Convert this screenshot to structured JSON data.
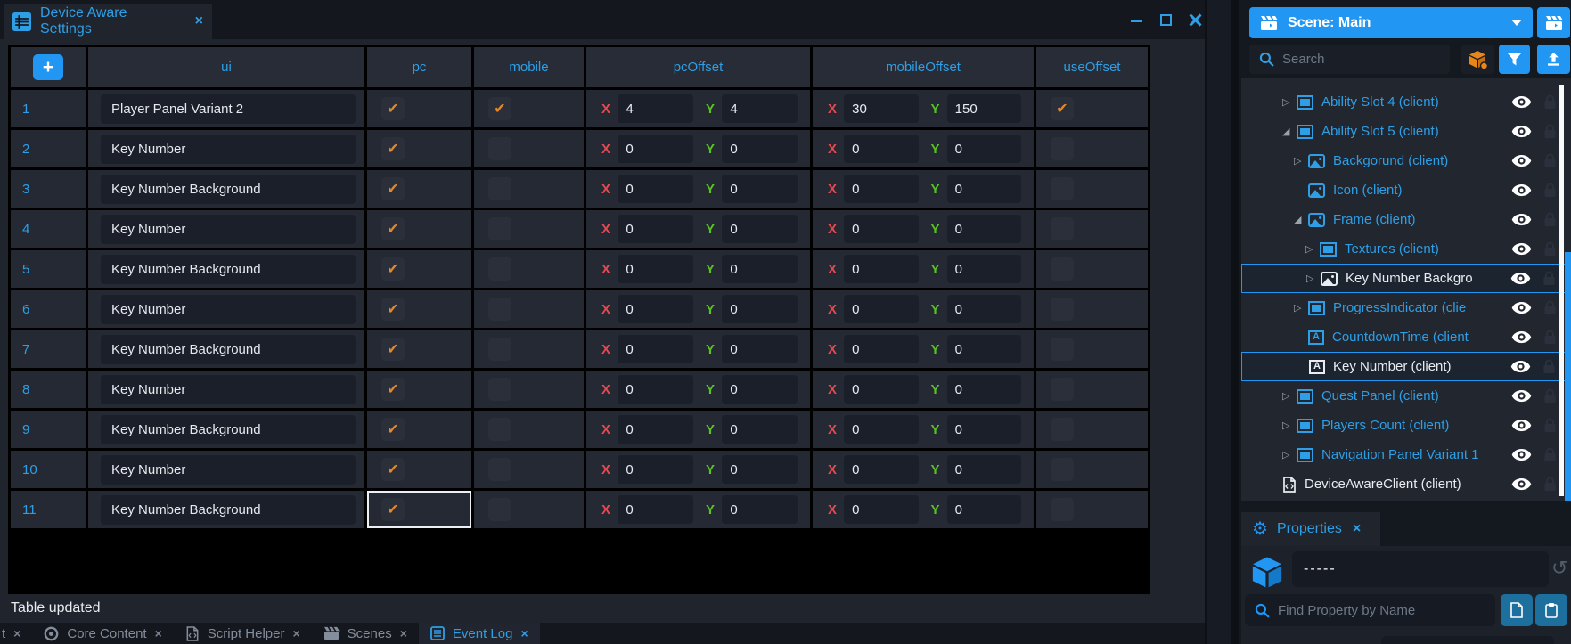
{
  "colors": {
    "accent": "#2196f3",
    "accent-text": "#2e9fe6",
    "check-orange": "#e0892c",
    "cube-orange": "#e8861a",
    "x-red": "#e8484f",
    "y-green": "#58c322"
  },
  "window": {
    "title_tab": {
      "title": "Device Aware Settings",
      "close": "×"
    }
  },
  "table": {
    "columns": [
      "",
      "ui",
      "pc",
      "mobile",
      "pcOffset",
      "mobileOffset",
      "useOffset"
    ],
    "add_button": "+",
    "check_glyph": "✔",
    "focused_cell": {
      "row_index": 10,
      "column": "pc"
    },
    "rows": [
      {
        "num": "1",
        "ui": "Player Panel Variant 2",
        "pc": true,
        "mobile": true,
        "pcOffset": {
          "x": "4",
          "y": "4"
        },
        "mobileOffset": {
          "x": "30",
          "y": "150"
        },
        "useOffset": true
      },
      {
        "num": "2",
        "ui": "Key Number",
        "pc": true,
        "mobile": false,
        "pcOffset": {
          "x": "0",
          "y": "0"
        },
        "mobileOffset": {
          "x": "0",
          "y": "0"
        },
        "useOffset": false
      },
      {
        "num": "3",
        "ui": "Key Number Background",
        "pc": true,
        "mobile": false,
        "pcOffset": {
          "x": "0",
          "y": "0"
        },
        "mobileOffset": {
          "x": "0",
          "y": "0"
        },
        "useOffset": false
      },
      {
        "num": "4",
        "ui": "Key Number",
        "pc": true,
        "mobile": false,
        "pcOffset": {
          "x": "0",
          "y": "0"
        },
        "mobileOffset": {
          "x": "0",
          "y": "0"
        },
        "useOffset": false
      },
      {
        "num": "5",
        "ui": "Key Number Background",
        "pc": true,
        "mobile": false,
        "pcOffset": {
          "x": "0",
          "y": "0"
        },
        "mobileOffset": {
          "x": "0",
          "y": "0"
        },
        "useOffset": false
      },
      {
        "num": "6",
        "ui": "Key Number",
        "pc": true,
        "mobile": false,
        "pcOffset": {
          "x": "0",
          "y": "0"
        },
        "mobileOffset": {
          "x": "0",
          "y": "0"
        },
        "useOffset": false
      },
      {
        "num": "7",
        "ui": "Key Number Background",
        "pc": true,
        "mobile": false,
        "pcOffset": {
          "x": "0",
          "y": "0"
        },
        "mobileOffset": {
          "x": "0",
          "y": "0"
        },
        "useOffset": false
      },
      {
        "num": "8",
        "ui": "Key Number",
        "pc": true,
        "mobile": false,
        "pcOffset": {
          "x": "0",
          "y": "0"
        },
        "mobileOffset": {
          "x": "0",
          "y": "0"
        },
        "useOffset": false
      },
      {
        "num": "9",
        "ui": "Key Number Background",
        "pc": true,
        "mobile": false,
        "pcOffset": {
          "x": "0",
          "y": "0"
        },
        "mobileOffset": {
          "x": "0",
          "y": "0"
        },
        "useOffset": false
      },
      {
        "num": "10",
        "ui": "Key Number",
        "pc": true,
        "mobile": false,
        "pcOffset": {
          "x": "0",
          "y": "0"
        },
        "mobileOffset": {
          "x": "0",
          "y": "0"
        },
        "useOffset": false
      },
      {
        "num": "11",
        "ui": "Key Number Background",
        "pc": true,
        "mobile": false,
        "pcOffset": {
          "x": "0",
          "y": "0"
        },
        "mobileOffset": {
          "x": "0",
          "y": "0"
        },
        "useOffset": false
      }
    ]
  },
  "status_bar": {
    "text": "Table updated"
  },
  "bottom_tabs": {
    "tabs": [
      {
        "label": "t",
        "icon": null,
        "active": false,
        "partial": true
      },
      {
        "label": "Core Content",
        "icon": "core",
        "active": false
      },
      {
        "label": "Script Helper",
        "icon": "script",
        "active": false
      },
      {
        "label": "Scenes",
        "icon": "scenes",
        "active": false
      },
      {
        "label": "Event Log",
        "icon": "eventlog",
        "active": true
      }
    ],
    "close_glyph": "×"
  },
  "scene_panel": {
    "title": "Scene: Main",
    "search_placeholder": "Search",
    "tree": [
      {
        "label": "Ability Slot 4 (client)",
        "icon": "frame",
        "expander": "collapsed",
        "indent": 0
      },
      {
        "label": "Ability Slot 5 (client)",
        "icon": "frame",
        "expander": "expanded",
        "indent": 0
      },
      {
        "label": "Backgorund (client)",
        "icon": "image",
        "expander": "collapsed",
        "indent": 1
      },
      {
        "label": "Icon (client)",
        "icon": "image",
        "expander": null,
        "indent": 1,
        "reserve_expander": true
      },
      {
        "label": "Frame (client)",
        "icon": "image",
        "expander": "expanded",
        "indent": 1
      },
      {
        "label": "Textures (client)",
        "icon": "frame",
        "expander": "collapsed",
        "indent": 2
      },
      {
        "label": "Key Number Backgro",
        "icon": "image",
        "expander": "collapsed",
        "indent": 2,
        "selected": true
      },
      {
        "label": "ProgressIndicator (clie",
        "icon": "frame",
        "expander": "collapsed",
        "indent": 1
      },
      {
        "label": "CountdownTime (client",
        "icon": "text",
        "expander": null,
        "indent": 1,
        "reserve_expander": true
      },
      {
        "label": "Key Number (client)",
        "icon": "text",
        "expander": null,
        "indent": 1,
        "reserve_expander": true,
        "selected": true
      },
      {
        "label": "Quest Panel (client)",
        "icon": "frame",
        "expander": "collapsed",
        "indent": 0
      },
      {
        "label": "Players Count (client)",
        "icon": "frame",
        "expander": "collapsed",
        "indent": 0
      },
      {
        "label": "Navigation Panel Variant 1",
        "icon": "frame",
        "expander": "collapsed",
        "indent": 0
      },
      {
        "label": "DeviceAwareClient (client)",
        "icon": "script",
        "expander": null,
        "indent": 0,
        "reserve_expander": false,
        "white": true
      }
    ]
  },
  "properties_panel": {
    "tab_label": "Properties",
    "close": "×",
    "value": "-----",
    "find_placeholder": "Find Property by Name"
  }
}
